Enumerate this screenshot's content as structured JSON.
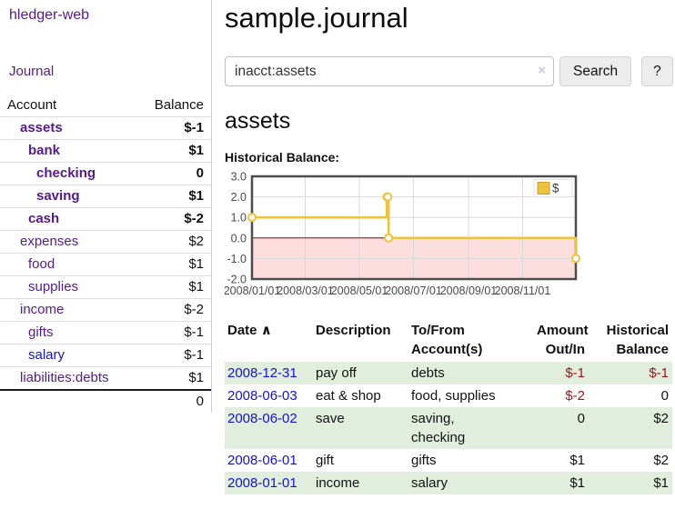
{
  "sidebar": {
    "brand": "hledger-web",
    "nav": {
      "journal": "Journal"
    },
    "table_headers": {
      "account": "Account",
      "balance": "Balance"
    },
    "accounts": [
      {
        "name": "assets",
        "depth": 0,
        "bold": true,
        "balance": "$-1",
        "balance_style": "neg-strong"
      },
      {
        "name": "bank",
        "depth": 1,
        "bold": true,
        "balance": "$1",
        "balance_style": "pos"
      },
      {
        "name": "checking",
        "depth": 2,
        "bold": true,
        "balance": "0",
        "balance_style": "pos"
      },
      {
        "name": "saving",
        "depth": 2,
        "bold": true,
        "balance": "$1",
        "balance_style": "pos"
      },
      {
        "name": "cash",
        "depth": 1,
        "bold": true,
        "balance": "$-2",
        "balance_style": "neg-strong"
      },
      {
        "name": "expenses",
        "depth": 0,
        "bold": false,
        "balance": "$2",
        "balance_style": "pos"
      },
      {
        "name": "food",
        "depth": 1,
        "bold": false,
        "balance": "$1",
        "balance_style": "pos"
      },
      {
        "name": "supplies",
        "depth": 1,
        "bold": false,
        "balance": "$1",
        "balance_style": "pos"
      },
      {
        "name": "income",
        "depth": 0,
        "bold": false,
        "balance": "$-2",
        "balance_style": "neg-muted"
      },
      {
        "name": "gifts",
        "depth": 1,
        "bold": false,
        "balance": "$-1",
        "balance_style": "neg-muted"
      },
      {
        "name": "salary",
        "depth": 1,
        "bold": false,
        "balance": "$-1",
        "balance_style": "neg-muted",
        "link_color": "blue"
      },
      {
        "name": "liabilities:debts",
        "depth": 0,
        "bold": false,
        "balance": "$1",
        "balance_style": "pos"
      }
    ],
    "total": "0"
  },
  "header": {
    "title": "sample.journal"
  },
  "search": {
    "query": "inacct:assets",
    "clear_icon": "×",
    "button_label": "Search",
    "help_label": "?"
  },
  "account_page": {
    "title": "assets",
    "chart_title": "Historical Balance:"
  },
  "chart_data": {
    "type": "line",
    "style": "step",
    "title": "Historical Balance",
    "series": [
      {
        "name": "$",
        "color": "#edc240",
        "points": [
          [
            "2008-01-01",
            1
          ],
          [
            "2008-06-01",
            2
          ],
          [
            "2008-06-02",
            2
          ],
          [
            "2008-06-03",
            0
          ],
          [
            "2008-12-31",
            -1
          ]
        ]
      }
    ],
    "x_range": [
      "2008-01-01",
      "2008-12-31"
    ],
    "x_ticks": [
      "2008/01/01",
      "2008/03/01",
      "2008/05/01",
      "2008/07/01",
      "2008/09/01",
      "2008/11/01"
    ],
    "y_ticks": [
      3.0,
      2.0,
      1.0,
      0.0,
      -1.0,
      -2.0
    ],
    "ylim": [
      -2,
      3
    ],
    "grid": true,
    "legend": {
      "label": "$",
      "position": "top-right"
    },
    "negative_region_color": "#fcdede",
    "zero_line_color": "#8b0000"
  },
  "register": {
    "headers": {
      "date": "Date",
      "sort_icon": "∧",
      "description": "Description",
      "tofrom_line1": "To/From",
      "tofrom_line2": "Account(s)",
      "amount_line1": "Amount",
      "amount_line2": "Out/In",
      "balance_line1": "Historical",
      "balance_line2": "Balance"
    },
    "rows": [
      {
        "date": "2008-12-31",
        "description": "pay off",
        "accounts": "debts",
        "amount": "$-1",
        "amount_neg": true,
        "balance": "$-1",
        "balance_neg": true,
        "shade": true
      },
      {
        "date": "2008-06-03",
        "description": "eat & shop",
        "accounts": "food, supplies",
        "amount": "$-2",
        "amount_neg": true,
        "balance": "0",
        "balance_neg": false,
        "shade": false
      },
      {
        "date": "2008-06-02",
        "description": "save",
        "accounts": "saving,\nchecking",
        "amount": "0",
        "amount_neg": false,
        "balance": "$2",
        "balance_neg": false,
        "shade": true
      },
      {
        "date": "2008-06-01",
        "description": "gift",
        "accounts": "gifts",
        "amount": "$1",
        "amount_neg": false,
        "balance": "$2",
        "balance_neg": false,
        "shade": false
      },
      {
        "date": "2008-01-01",
        "description": "income",
        "accounts": "salary",
        "amount": "$1",
        "amount_neg": false,
        "balance": "$1",
        "balance_neg": false,
        "shade": true
      }
    ]
  }
}
